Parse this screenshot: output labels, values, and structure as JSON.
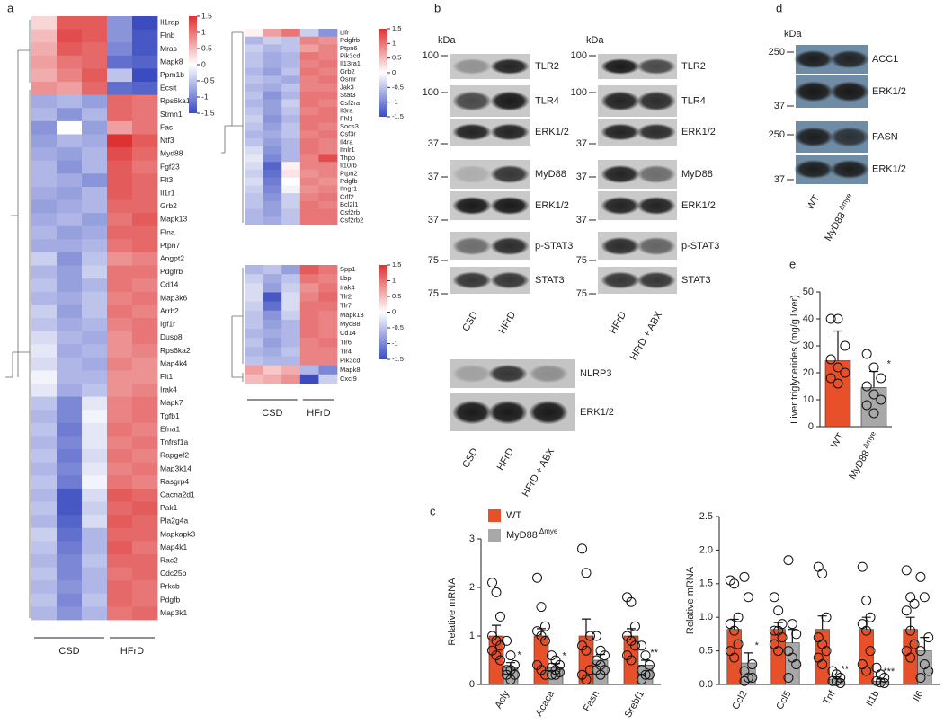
{
  "panels": [
    "a",
    "b",
    "c",
    "d",
    "e"
  ],
  "chart_data": [
    {
      "type": "heatmap",
      "rows": [
        "Il1rap",
        "Flnb",
        "Mras",
        "Mapk8",
        "Ppm1b",
        "Ecsit",
        "Rps6ka1",
        "Stmn1",
        "Fas",
        "Ntf3",
        "Myd88",
        "Fgf23",
        "Flt3",
        "Il1r1",
        "Grb2",
        "Mapk13",
        "Flna",
        "Ptpn7",
        "Angpt2",
        "Pdgfrb",
        "Cd14",
        "Map3k6",
        "Arrb2",
        "Igf1r",
        "Dusp8",
        "Rps6ka2",
        "Map4k4",
        "Flt1",
        "Irak4",
        "Mapk7",
        "Tgfb1",
        "Efna1",
        "Tnfrsf1a",
        "Rapgef2",
        "Map3k14",
        "Rasgrp4",
        "Cacna2d1",
        "Pak1",
        "Pla2g4a",
        "Mapkapk3",
        "Map4k1",
        "Rac2",
        "Cdc25b",
        "Prkcb",
        "Pdgfb",
        "Map3k1"
      ],
      "values": [
        [
          0.3,
          1.2,
          1.2,
          -0.9,
          -1.5
        ],
        [
          0.5,
          1.3,
          1.2,
          -0.9,
          -1.4
        ],
        [
          0.6,
          1.2,
          1.1,
          -1.0,
          -1.4
        ],
        [
          0.7,
          1.0,
          1.1,
          -1.2,
          -1.3
        ],
        [
          0.6,
          0.9,
          1.2,
          -0.5,
          -1.5
        ],
        [
          0.8,
          0.7,
          1.1,
          -1.2,
          -1.3
        ],
        [
          -0.7,
          -0.6,
          -0.8,
          1.1,
          1.0
        ],
        [
          -0.6,
          -0.9,
          -0.6,
          1.1,
          1.0
        ],
        [
          -0.9,
          0.0,
          -0.8,
          0.7,
          1.0
        ],
        [
          -0.8,
          -0.6,
          -0.7,
          1.5,
          1.2
        ],
        [
          -0.7,
          -0.8,
          -0.6,
          1.3,
          1.1
        ],
        [
          -0.6,
          -0.9,
          -0.6,
          1.2,
          1.0
        ],
        [
          -0.6,
          -0.7,
          -0.9,
          1.2,
          1.1
        ],
        [
          -0.7,
          -0.8,
          -0.6,
          1.2,
          1.1
        ],
        [
          -0.8,
          -0.7,
          -0.6,
          1.1,
          1.1
        ],
        [
          -0.7,
          -0.6,
          -0.8,
          1.0,
          1.2
        ],
        [
          -0.6,
          -0.8,
          -0.7,
          1.1,
          1.1
        ],
        [
          -0.7,
          -0.7,
          -0.6,
          1.0,
          1.1
        ],
        [
          -0.4,
          -0.9,
          -0.5,
          0.8,
          0.9
        ],
        [
          -0.6,
          -0.8,
          -0.4,
          1.0,
          1.0
        ],
        [
          -0.5,
          -0.8,
          -0.6,
          1.0,
          0.9
        ],
        [
          -0.6,
          -0.7,
          -0.5,
          0.9,
          1.0
        ],
        [
          -0.4,
          -0.8,
          -0.5,
          1.0,
          0.9
        ],
        [
          -0.5,
          -0.7,
          -0.6,
          0.9,
          1.0
        ],
        [
          -0.3,
          -0.6,
          -0.7,
          0.8,
          1.0
        ],
        [
          -0.2,
          -0.7,
          -0.6,
          0.8,
          0.9
        ],
        [
          -0.3,
          -0.6,
          -0.7,
          0.9,
          0.8
        ],
        [
          -0.1,
          -0.6,
          -0.6,
          0.8,
          0.8
        ],
        [
          -0.2,
          -0.7,
          -0.5,
          0.8,
          0.9
        ],
        [
          -0.5,
          -1.0,
          -0.2,
          0.9,
          1.0
        ],
        [
          -0.6,
          -1.0,
          -0.1,
          0.9,
          1.0
        ],
        [
          -0.5,
          -1.1,
          -0.2,
          1.0,
          0.9
        ],
        [
          -0.6,
          -1.0,
          -0.2,
          0.9,
          1.0
        ],
        [
          -0.5,
          -1.1,
          -0.3,
          1.0,
          0.9
        ],
        [
          -0.6,
          -1.0,
          -0.2,
          0.9,
          1.0
        ],
        [
          -0.5,
          -1.1,
          -0.1,
          1.0,
          0.9
        ],
        [
          -0.6,
          -1.4,
          -0.3,
          1.2,
          1.1
        ],
        [
          -0.5,
          -1.4,
          -0.4,
          1.1,
          1.2
        ],
        [
          -0.6,
          -1.3,
          -0.3,
          1.2,
          1.1
        ],
        [
          -0.4,
          -1.2,
          -0.6,
          1.1,
          1.1
        ],
        [
          -0.5,
          -1.1,
          -0.6,
          1.2,
          1.0
        ],
        [
          -0.6,
          -1.0,
          -0.5,
          1.1,
          1.1
        ],
        [
          -0.5,
          -1.0,
          -0.6,
          1.0,
          1.1
        ],
        [
          -0.6,
          -0.9,
          -0.6,
          1.1,
          1.0
        ],
        [
          -0.5,
          -1.0,
          -0.5,
          1.1,
          1.0
        ],
        [
          -0.6,
          -0.9,
          -0.6,
          1.0,
          1.1
        ]
      ],
      "clim": [
        -1.5,
        1.5
      ],
      "colorbar_ticks": [
        1.5,
        1,
        0.5,
        0,
        -0.5,
        -1,
        -1.5
      ],
      "groups": [
        {
          "label": "CSD",
          "columns": 3
        },
        {
          "label": "HFrD",
          "columns": 2
        }
      ]
    },
    {
      "type": "heatmap",
      "rows": [
        "Lifr",
        "Pdgfrb",
        "Ptpn6",
        "Pik3cd",
        "Il13ra1",
        "Grb2",
        "Osmr",
        "Jak3",
        "Stat3",
        "Csf2ra",
        "Il3ra",
        "Fhl1",
        "Socs3",
        "Csf3r",
        "Il4ra",
        "Ifnlr1",
        "Thpo",
        "Il10rb",
        "Ptpn2",
        "Pdgfb",
        "Ifngr1",
        "Crlf2",
        "Bcl2l1",
        "Csf2rb",
        "Csf2rb2"
      ],
      "values": [
        [
          0.1,
          0.7,
          1.0,
          -0.4,
          -0.9
        ],
        [
          -0.6,
          -0.4,
          -0.5,
          0.9,
          0.8
        ],
        [
          -0.4,
          -0.6,
          -0.5,
          0.7,
          0.9
        ],
        [
          -0.5,
          -0.7,
          -0.6,
          1.0,
          0.9
        ],
        [
          -0.5,
          -0.7,
          -0.6,
          0.9,
          1.0
        ],
        [
          -0.6,
          -0.8,
          -0.5,
          1.0,
          0.9
        ],
        [
          -0.5,
          -0.6,
          -0.7,
          0.9,
          1.0
        ],
        [
          -0.6,
          -0.7,
          -0.5,
          0.9,
          0.9
        ],
        [
          -0.5,
          -0.9,
          -0.6,
          1.0,
          1.0
        ],
        [
          -0.6,
          -0.8,
          -0.4,
          1.0,
          0.9
        ],
        [
          -0.5,
          -0.8,
          -0.5,
          0.9,
          1.0
        ],
        [
          -0.4,
          -0.9,
          -0.6,
          1.0,
          1.0
        ],
        [
          -0.5,
          -0.8,
          -0.5,
          1.0,
          0.9
        ],
        [
          -0.6,
          -0.7,
          -0.5,
          0.9,
          1.0
        ],
        [
          -0.5,
          -0.8,
          -0.6,
          1.0,
          0.9
        ],
        [
          -0.3,
          -0.9,
          -0.6,
          1.0,
          0.9
        ],
        [
          -0.2,
          -1.0,
          -0.6,
          0.9,
          1.3
        ],
        [
          -0.3,
          -1.3,
          0.1,
          0.9,
          0.9
        ],
        [
          -0.4,
          -1.2,
          0.2,
          0.8,
          0.9
        ],
        [
          -0.3,
          -1.1,
          0.0,
          0.9,
          0.8
        ],
        [
          -0.4,
          -1.0,
          -0.1,
          0.8,
          0.9
        ],
        [
          -0.5,
          -0.9,
          -0.4,
          0.9,
          1.0
        ],
        [
          -0.5,
          -0.8,
          -0.4,
          1.0,
          0.9
        ],
        [
          -0.6,
          -0.8,
          -0.5,
          1.0,
          1.0
        ],
        [
          -0.6,
          -0.7,
          -0.5,
          1.0,
          1.0
        ]
      ],
      "clim": [
        -1.5,
        1.5
      ],
      "colorbar_ticks": [
        1.5,
        1,
        0.5,
        0,
        -0.5,
        -1,
        -1.5
      ]
    },
    {
      "type": "heatmap",
      "rows": [
        "Spp1",
        "Lbp",
        "Irak4",
        "Tlr2",
        "Tlr7",
        "Mapk13",
        "Myd88",
        "Cd14",
        "Tlr6",
        "Tlr4",
        "Pik3cd",
        "Mapk8",
        "Cxcl9"
      ],
      "values": [
        [
          -0.6,
          -0.5,
          -0.8,
          1.2,
          1.0
        ],
        [
          -0.4,
          -0.7,
          -0.5,
          1.0,
          0.9
        ],
        [
          -0.3,
          -0.8,
          -0.4,
          0.8,
          1.0
        ],
        [
          -0.3,
          -1.4,
          -0.3,
          0.9,
          1.1
        ],
        [
          -0.4,
          -1.2,
          -0.3,
          1.0,
          1.0
        ],
        [
          -0.5,
          -0.9,
          -0.4,
          1.0,
          0.9
        ],
        [
          -0.5,
          -0.8,
          -0.6,
          1.0,
          0.9
        ],
        [
          -0.6,
          -0.7,
          -0.6,
          1.0,
          0.9
        ],
        [
          -0.5,
          -0.8,
          -0.6,
          0.9,
          1.0
        ],
        [
          -0.6,
          -0.7,
          -0.5,
          0.9,
          0.9
        ],
        [
          -0.5,
          -0.6,
          -0.6,
          0.9,
          0.9
        ],
        [
          0.7,
          0.4,
          0.6,
          -0.6,
          -1.0
        ],
        [
          0.5,
          0.6,
          0.8,
          -1.5,
          -0.4
        ]
      ],
      "clim": [
        -1.5,
        1.5
      ],
      "colorbar_ticks": [
        1.5,
        1,
        0.5,
        0,
        -0.5,
        -1,
        -1.5
      ],
      "groups": [
        {
          "label": "CSD",
          "columns": 3
        },
        {
          "label": "HFrD",
          "columns": 2
        }
      ]
    },
    {
      "type": "bar",
      "y_label": "Relative mRNA",
      "categories": [
        "Acly",
        "Acaca",
        "Fasn",
        "Srebf1"
      ],
      "ylim": [
        0,
        3
      ],
      "yticks": [
        0,
        1,
        2,
        3
      ],
      "series": [
        {
          "name": "WT",
          "color": "#e8502a",
          "values": [
            1,
            1,
            1,
            1
          ],
          "errors": [
            0.22,
            0.15,
            0.35,
            0.15
          ],
          "points": [
            [
              2.1,
              1.9,
              1.4,
              1.0,
              0.9,
              0.8,
              0.7,
              0.6,
              0.5
            ],
            [
              2.2,
              1.6,
              1.2,
              1.1,
              1.0,
              0.9,
              0.4,
              0.3,
              0.2
            ],
            [
              2.8,
              2.3,
              1.0,
              0.8,
              0.7,
              0.3,
              0.2,
              0.1
            ],
            [
              1.8,
              1.7,
              1.2,
              1.0,
              0.9,
              0.8,
              0.6,
              0.5
            ]
          ]
        },
        {
          "name": "MyD88",
          "name_superscript": "Δmye",
          "color": "#a8a8a8",
          "values": [
            0.35,
            0.35,
            0.5,
            0.4
          ],
          "errors": [
            0.1,
            0.08,
            0.12,
            0.1
          ],
          "points": [
            [
              0.9,
              0.6,
              0.4,
              0.3,
              0.3,
              0.2,
              0.2,
              0.1
            ],
            [
              0.6,
              0.5,
              0.4,
              0.35,
              0.3,
              0.25,
              0.2,
              0.2
            ],
            [
              1.0,
              0.7,
              0.6,
              0.5,
              0.4,
              0.3,
              0.3,
              0.2
            ],
            [
              0.8,
              0.6,
              0.4,
              0.3,
              0.2,
              0.2,
              0.1
            ]
          ],
          "significance": [
            "*",
            "*",
            null,
            "**"
          ]
        }
      ]
    },
    {
      "type": "bar",
      "y_label": "Relative mRNA",
      "categories": [
        "Ccl2",
        "Ccl5",
        "Tnf",
        "Il1b",
        "Il6"
      ],
      "ylim": [
        0,
        2.5
      ],
      "yticks": [
        {
          "value": 0,
          "label": "0.0"
        },
        0.5,
        {
          "value": 1,
          "label": "1.0"
        },
        1.5,
        {
          "value": 2,
          "label": "2.0"
        },
        2.5
      ],
      "series": [
        {
          "color": "#e8502a",
          "values": [
            0.82,
            0.82,
            0.82,
            0.82,
            0.82
          ],
          "errors": [
            0.15,
            0.1,
            0.2,
            0.18,
            0.18
          ],
          "points": [
            [
              1.55,
              1.5,
              1.0,
              0.9,
              0.8,
              0.6,
              0.5,
              0.4
            ],
            [
              1.3,
              1.1,
              0.9,
              0.8,
              0.8,
              0.7,
              0.6,
              0.5
            ],
            [
              1.75,
              1.65,
              1.0,
              0.7,
              0.6,
              0.5,
              0.4,
              0.3
            ],
            [
              1.75,
              1.25,
              1.0,
              0.9,
              0.8,
              0.5,
              0.3,
              0.2
            ],
            [
              1.7,
              1.3,
              1.2,
              1.1,
              0.8,
              0.6,
              0.5,
              0.4
            ]
          ]
        },
        {
          "color": "#a8a8a8",
          "values": [
            0.32,
            0.62,
            0.08,
            0.05,
            0.5
          ],
          "errors": [
            0.15,
            0.2,
            0.03,
            0.03,
            0.2
          ],
          "points": [
            [
              1.6,
              1.3,
              0.3,
              0.2,
              0.1,
              0.1,
              0.05
            ],
            [
              1.85,
              0.9,
              0.75,
              0.5,
              0.4,
              0.3,
              0.1
            ],
            [
              0.2,
              0.15,
              0.1,
              0.05,
              0.05,
              0.02
            ],
            [
              0.25,
              0.15,
              0.1,
              0.05,
              0.03,
              0.02
            ],
            [
              1.6,
              1.3,
              0.7,
              0.5,
              0.3,
              0.2,
              0.1
            ]
          ],
          "significance": [
            "*",
            null,
            "**",
            "***",
            null
          ]
        }
      ]
    },
    {
      "type": "bar",
      "y_label": "Liver triglycerides (mg/g liver)",
      "categories": [
        "WT",
        "MyD88"
      ],
      "category_superscripts": [
        null,
        "Δmye"
      ],
      "ylim": [
        0,
        50
      ],
      "yticks": [
        0,
        10,
        20,
        30,
        40,
        50
      ],
      "values": [
        24.5,
        14.5
      ],
      "errors": [
        11,
        6
      ],
      "colors": [
        "#e8502a",
        "#a8a8a8"
      ],
      "points": [
        [
          40,
          40,
          30,
          25,
          22,
          20,
          18,
          16
        ],
        [
          27,
          22,
          18,
          15,
          12,
          10,
          8,
          5
        ]
      ],
      "significance": [
        null,
        "*"
      ]
    }
  ],
  "blots": [
    {
      "unit": "kDa",
      "markers": [
        "100",
        "100",
        "37",
        "37",
        "37",
        "75",
        "75"
      ],
      "bands": [
        "TLR2",
        "TLR4",
        "ERK1/2",
        "MyD88",
        "ERK1/2",
        "p-STAT3",
        "STAT3"
      ],
      "lanes": [
        "CSD",
        "HFrD"
      ]
    },
    {
      "unit": "kDa",
      "markers": [
        "100",
        "100",
        "37",
        "37",
        "37",
        "75",
        "75"
      ],
      "bands": [
        "TLR2",
        "TLR4",
        "ERK1/2",
        "MyD88",
        "ERK1/2",
        "p-STAT3",
        "STAT3"
      ],
      "lanes": [
        "HFrD",
        "HFrD + ABX"
      ]
    },
    {
      "bands": [
        "NLRP3",
        "ERK1/2"
      ],
      "lanes": [
        "CSD",
        "HFrD",
        "HFrD + ABX"
      ]
    },
    {
      "unit": "kDa",
      "markers": [
        "250",
        "37",
        "250",
        "37"
      ],
      "bands": [
        "ACC1",
        "ERK1/2",
        "FASN",
        "ERK1/2"
      ],
      "lanes": [
        "WT",
        "MyD88"
      ],
      "lane_superscripts": [
        null,
        "Δmye"
      ]
    }
  ]
}
